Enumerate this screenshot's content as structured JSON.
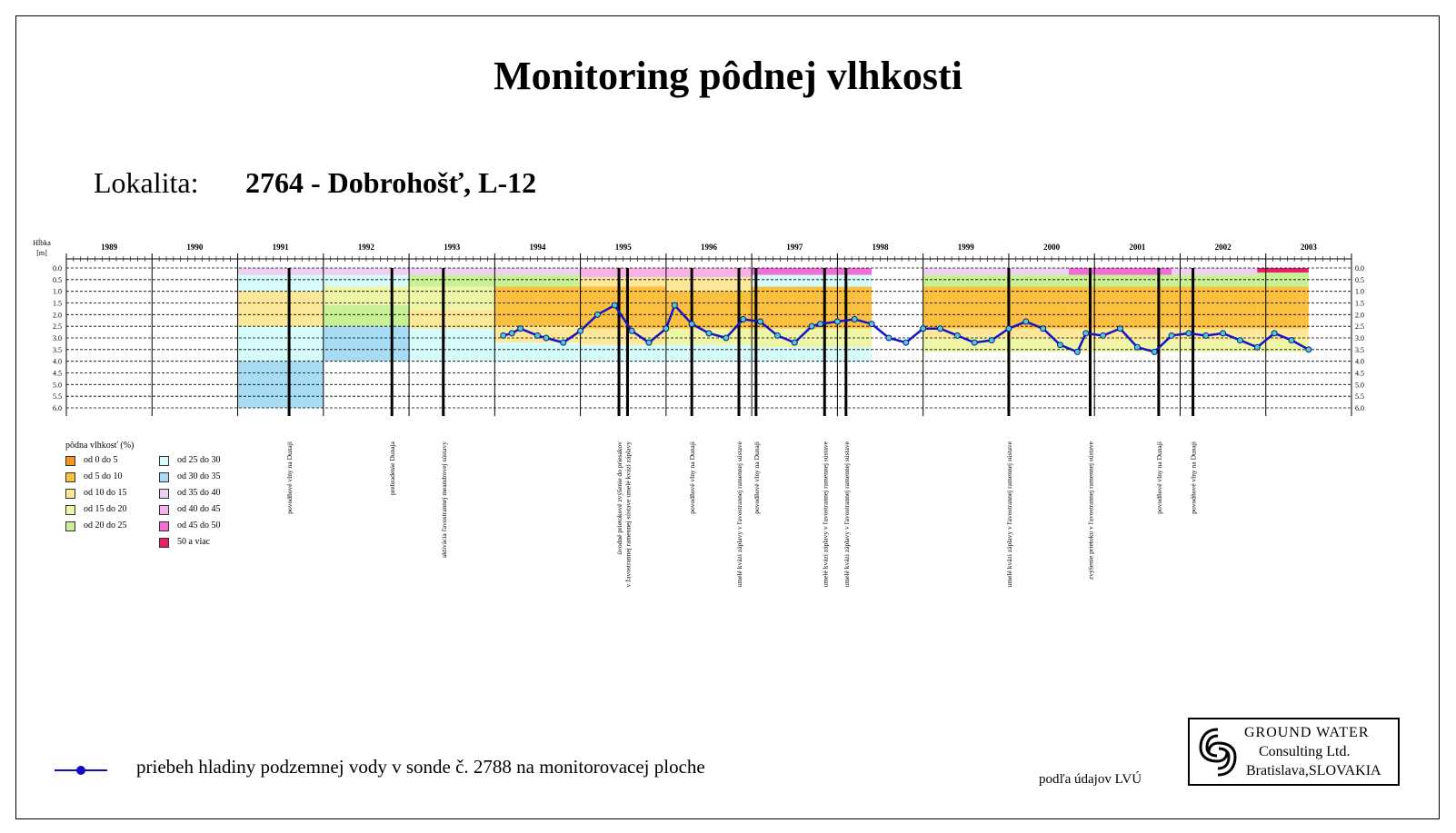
{
  "title": "Monitoring pôdnej vlhkosti",
  "locality": {
    "label": "Lokalita:",
    "value": "2764 - Dobrohošť, L-12"
  },
  "chart_data": {
    "type": "heatmap",
    "y_axis_label_line1": "Hĺbka",
    "y_axis_label_line2": "[m]",
    "y_ticks": [
      "0.0",
      "0.5",
      "1.0",
      "1.5",
      "2.0",
      "2.5",
      "3.0",
      "3.5",
      "4.0",
      "4.5",
      "5.0",
      "5.5",
      "6.0"
    ],
    "ylim": [
      0,
      6
    ],
    "years": [
      "1989",
      "1990",
      "1991",
      "1992",
      "1993",
      "1994",
      "1995",
      "1996",
      "1997",
      "1998",
      "1999",
      "2000",
      "2001",
      "2002",
      "2003"
    ],
    "xlim": [
      1989,
      2004
    ],
    "moisture_classes": [
      {
        "label": "od 0 do 5",
        "color": "#f7941d"
      },
      {
        "label": "od 5 do 10",
        "color": "#fbc040"
      },
      {
        "label": "od 10 do 15",
        "color": "#fde89a"
      },
      {
        "label": "od 15 do 20",
        "color": "#eef5a6"
      },
      {
        "label": "od 20 do 25",
        "color": "#c8f095"
      },
      {
        "label": "od 25 do 30",
        "color": "#d6fbfb"
      },
      {
        "label": "od 30 do 35",
        "color": "#a8dcf5"
      },
      {
        "label": "od 35 do 40",
        "color": "#eed0f5"
      },
      {
        "label": "od 40 do 45",
        "color": "#f7b2e8"
      },
      {
        "label": "od 45 do 50",
        "color": "#f06ed6"
      },
      {
        "label": "50 a viac",
        "color": "#e8206a"
      }
    ],
    "moisture_periods": [
      {
        "start": 1991.0,
        "end": 1992.0,
        "layers": [
          [
            0.0,
            0.3,
            7
          ],
          [
            0.3,
            1.0,
            5
          ],
          [
            1.0,
            2.5,
            2
          ],
          [
            2.5,
            4.0,
            5
          ],
          [
            4.0,
            5.3,
            6
          ],
          [
            5.3,
            6.0,
            6
          ]
        ]
      },
      {
        "start": 1992.0,
        "end": 1993.0,
        "layers": [
          [
            0.0,
            0.3,
            7
          ],
          [
            0.3,
            0.8,
            5
          ],
          [
            0.8,
            1.6,
            3
          ],
          [
            1.6,
            2.5,
            4
          ],
          [
            2.5,
            4.0,
            6
          ]
        ]
      },
      {
        "start": 1993.0,
        "end": 1994.0,
        "layers": [
          [
            0.0,
            0.3,
            7
          ],
          [
            0.3,
            0.8,
            4
          ],
          [
            0.8,
            1.8,
            3
          ],
          [
            1.8,
            2.6,
            2
          ],
          [
            2.6,
            4.0,
            5
          ]
        ]
      },
      {
        "start": 1994.0,
        "end": 1995.0,
        "layers": [
          [
            0.0,
            0.3,
            7
          ],
          [
            0.3,
            0.8,
            4
          ],
          [
            0.8,
            2.5,
            1
          ],
          [
            2.5,
            3.2,
            2
          ],
          [
            3.2,
            4.0,
            5
          ]
        ]
      },
      {
        "start": 1995.0,
        "end": 1996.0,
        "layers": [
          [
            0.0,
            0.4,
            8
          ],
          [
            0.4,
            0.8,
            2
          ],
          [
            0.8,
            2.6,
            1
          ],
          [
            2.6,
            3.3,
            2
          ],
          [
            3.3,
            4.0,
            5
          ]
        ]
      },
      {
        "start": 1996.0,
        "end": 1997.0,
        "layers": [
          [
            0.0,
            0.4,
            8
          ],
          [
            0.4,
            1.0,
            2
          ],
          [
            1.0,
            2.6,
            1
          ],
          [
            2.6,
            3.3,
            3
          ],
          [
            3.3,
            4.0,
            5
          ]
        ]
      },
      {
        "start": 1997.0,
        "end": 1998.0,
        "layers": [
          [
            0.0,
            0.3,
            9
          ],
          [
            0.3,
            0.8,
            5
          ],
          [
            0.8,
            2.6,
            1
          ],
          [
            2.6,
            3.4,
            3
          ],
          [
            3.4,
            4.0,
            5
          ]
        ]
      },
      {
        "start": 1998.0,
        "end": 1998.4,
        "layers": [
          [
            0.0,
            0.3,
            9
          ],
          [
            0.3,
            0.8,
            5
          ],
          [
            0.8,
            2.6,
            1
          ],
          [
            2.6,
            3.4,
            3
          ],
          [
            3.4,
            4.0,
            5
          ]
        ]
      },
      {
        "start": 1999.0,
        "end": 2000.7,
        "layers": [
          [
            0.0,
            0.3,
            7
          ],
          [
            0.3,
            0.8,
            4
          ],
          [
            0.8,
            2.6,
            1
          ],
          [
            2.6,
            3.0,
            2
          ],
          [
            3.0,
            3.6,
            3
          ]
        ]
      },
      {
        "start": 2000.7,
        "end": 2001.9,
        "layers": [
          [
            0.0,
            0.3,
            9
          ],
          [
            0.3,
            0.8,
            4
          ],
          [
            0.8,
            2.6,
            1
          ],
          [
            2.6,
            3.1,
            2
          ],
          [
            3.1,
            3.6,
            3
          ]
        ]
      },
      {
        "start": 2001.9,
        "end": 2002.9,
        "layers": [
          [
            0.0,
            0.3,
            7
          ],
          [
            0.3,
            0.8,
            4
          ],
          [
            0.8,
            2.6,
            1
          ],
          [
            2.6,
            3.1,
            2
          ],
          [
            3.1,
            3.6,
            3
          ]
        ]
      },
      {
        "start": 2002.9,
        "end": 2003.5,
        "layers": [
          [
            0.0,
            0.2,
            10
          ],
          [
            0.2,
            0.8,
            4
          ],
          [
            0.8,
            2.6,
            1
          ],
          [
            2.6,
            3.1,
            2
          ],
          [
            3.1,
            3.6,
            3
          ]
        ]
      }
    ],
    "groundwater_series": {
      "x": [
        1994.1,
        1994.2,
        1994.3,
        1994.5,
        1994.6,
        1994.8,
        1995.0,
        1995.2,
        1995.4,
        1995.6,
        1995.8,
        1996.0,
        1996.1,
        1996.3,
        1996.5,
        1996.7,
        1996.9,
        1997.1,
        1997.3,
        1997.5,
        1997.7,
        1997.8,
        1998.0,
        1998.2,
        1998.4,
        1998.6,
        1998.8,
        1999.0,
        1999.2,
        1999.4,
        1999.6,
        1999.8,
        2000.0,
        2000.2,
        2000.4,
        2000.6,
        2000.8,
        2000.9,
        2001.1,
        2001.3,
        2001.5,
        2001.7,
        2001.9,
        2002.1,
        2002.3,
        2002.5,
        2002.7,
        2002.9,
        2003.1,
        2003.3,
        2003.5
      ],
      "y": [
        2.9,
        2.8,
        2.6,
        2.9,
        3.0,
        3.2,
        2.7,
        2.0,
        1.6,
        2.7,
        3.2,
        2.6,
        1.6,
        2.4,
        2.8,
        3.0,
        2.2,
        2.3,
        2.9,
        3.2,
        2.5,
        2.4,
        2.3,
        2.2,
        2.4,
        3.0,
        3.2,
        2.6,
        2.6,
        2.9,
        3.2,
        3.1,
        2.6,
        2.3,
        2.6,
        3.3,
        3.6,
        2.8,
        2.9,
        2.6,
        3.4,
        3.6,
        2.9,
        2.8,
        2.9,
        2.8,
        3.1,
        3.4,
        2.8,
        3.1,
        3.5
      ]
    },
    "event_markers": [
      {
        "x": 1991.6,
        "label": "povodňové vlny na Dunaji"
      },
      {
        "x": 1992.8,
        "label": "prehradenie Dunaja"
      },
      {
        "x": 1993.4,
        "label": "aktivácia ľavostrannej meandrovej sústavy"
      },
      {
        "x": 1995.45,
        "label": "úvodné prietokové zvýšenie do priesakov"
      },
      {
        "x": 1995.55,
        "label": "v ľavostrannej ramennej sústave umelé kvázi záplavy"
      },
      {
        "x": 1996.3,
        "label": "povodňové vlny na Dunaji"
      },
      {
        "x": 1996.85,
        "label": "umelé kvázi záplavy v ľavostrannej ramennej sústave"
      },
      {
        "x": 1997.05,
        "label": "povodňové vlny na Dunaji"
      },
      {
        "x": 1997.85,
        "label": "umelé kvázi záplavy v ľavostrannej ramennej sústave"
      },
      {
        "x": 1998.1,
        "label": "umelé kvázi záplavy v ľavostrannej ramennej sústave"
      },
      {
        "x": 2000.0,
        "label": "umelé kvázi záplavy v ľavostrannej ramennej sústave"
      },
      {
        "x": 2000.95,
        "label": "zvýšenie prietoku v ľavostrannej ramennej sústave"
      },
      {
        "x": 2001.75,
        "label": "povodňové vlny na Dunaji"
      },
      {
        "x": 2002.15,
        "label": "povodňové vlny na Dunaji"
      }
    ],
    "legend_title": "pôdna vlhkosť (%)"
  },
  "gw_legend": "priebeh hladiny podzemnej vody v sonde č. 2788 na monitorovacej ploche",
  "source": "podľa údajov LVÚ",
  "logo": {
    "line1": "GROUND WATER",
    "line2": "Consulting Ltd.",
    "line3": "Bratislava,SLOVAKIA"
  }
}
